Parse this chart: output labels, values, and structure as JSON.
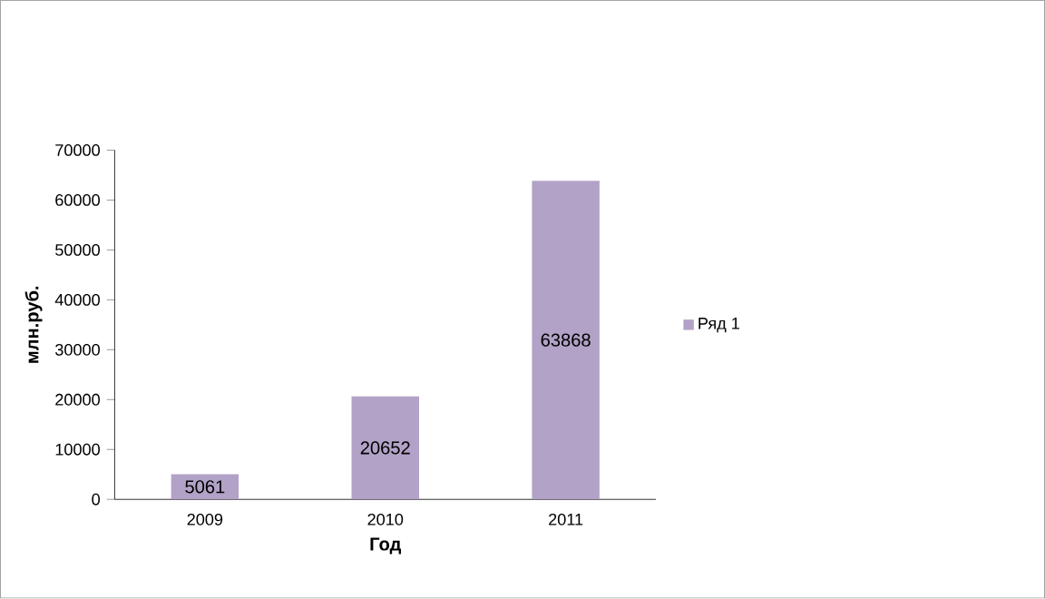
{
  "chart_data": {
    "type": "bar",
    "xlabel": "Год",
    "ylabel": "млн.руб.",
    "categories": [
      "2009",
      "2010",
      "2011"
    ],
    "series": [
      {
        "name": "Ряд 1",
        "color": "#b3a2c7",
        "values": [
          5061,
          20652,
          63868
        ]
      }
    ],
    "data_labels": true,
    "ylim": [
      0,
      70000
    ],
    "yticks": [
      0,
      10000,
      20000,
      30000,
      40000,
      50000,
      60000,
      70000
    ],
    "grid": false,
    "legend": "right"
  }
}
